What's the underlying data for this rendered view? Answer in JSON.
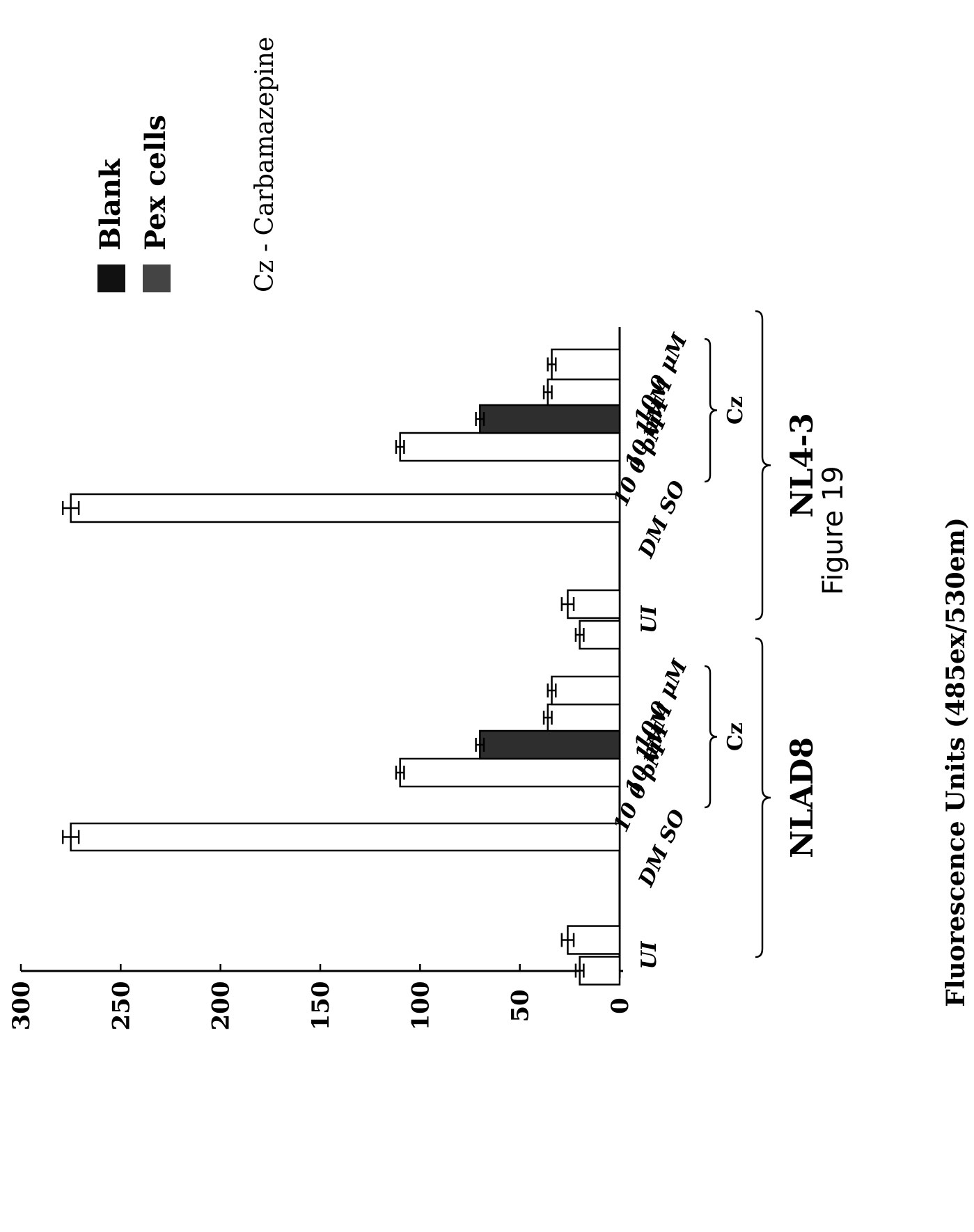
{
  "chart_data": {
    "type": "bar",
    "orientation": "rotated-90-ccw",
    "ylabel": "Fluorescence Units (485ex/530em)",
    "ylim": [
      0,
      300
    ],
    "yticks": [
      "0",
      "50",
      "100",
      "150",
      "200",
      "250",
      "300"
    ],
    "groups": [
      {
        "name": "NLAD8",
        "categories": [
          {
            "label": "UI",
            "bars": [
              {
                "series": "Blank",
                "value": 20,
                "err": 2
              },
              {
                "series": "Blank",
                "value": 26,
                "err": 3
              }
            ]
          },
          {
            "label": "DM SO",
            "bars": [
              {
                "series": "Blank",
                "value": 275,
                "err": 4
              }
            ]
          },
          {
            "label": "10 0 pM",
            "bars": [
              {
                "series": "Blank",
                "value": 110,
                "err": 2
              }
            ]
          },
          {
            "label": "10 nM",
            "bars": [
              {
                "series": "Pex cells",
                "value": 70,
                "err": 2
              }
            ]
          },
          {
            "label": "1 μM",
            "bars": [
              {
                "series": "Blank",
                "value": 36,
                "err": 2
              }
            ]
          },
          {
            "label": "10 0 μM",
            "bars": [
              {
                "series": "Blank",
                "value": 34,
                "err": 2
              }
            ]
          }
        ],
        "subgroup": "Cz"
      },
      {
        "name": "NL4-3",
        "categories": [
          {
            "label": "UI",
            "bars": [
              {
                "series": "Blank",
                "value": 20,
                "err": 2
              },
              {
                "series": "Blank",
                "value": 26,
                "err": 3
              }
            ]
          },
          {
            "label": "DM SO",
            "bars": [
              {
                "series": "Blank",
                "value": 275,
                "err": 4
              }
            ]
          },
          {
            "label": "10 0 pM",
            "bars": [
              {
                "series": "Blank",
                "value": 110,
                "err": 2
              }
            ]
          },
          {
            "label": "10 nM",
            "bars": [
              {
                "series": "Pex cells",
                "value": 70,
                "err": 2
              }
            ]
          },
          {
            "label": "1 μM",
            "bars": [
              {
                "series": "Blank",
                "value": 36,
                "err": 2
              }
            ]
          },
          {
            "label": "10 0 μM",
            "bars": [
              {
                "series": "Blank",
                "value": 34,
                "err": 2
              }
            ]
          }
        ],
        "subgroup": "Cz"
      }
    ],
    "legend": {
      "placement": "top-right",
      "entries": [
        {
          "name": "Blank",
          "color": "#111111"
        },
        {
          "name": "Pex cells",
          "color": "#444444"
        }
      ]
    },
    "note": "Cz - Carbamazepine",
    "grid": false
  },
  "figure_caption": "Figure 19",
  "colors": {
    "blank_bar_fill": "#ffffff",
    "pex_bar_fill": "#2e2e2e",
    "ink": "#000000"
  }
}
